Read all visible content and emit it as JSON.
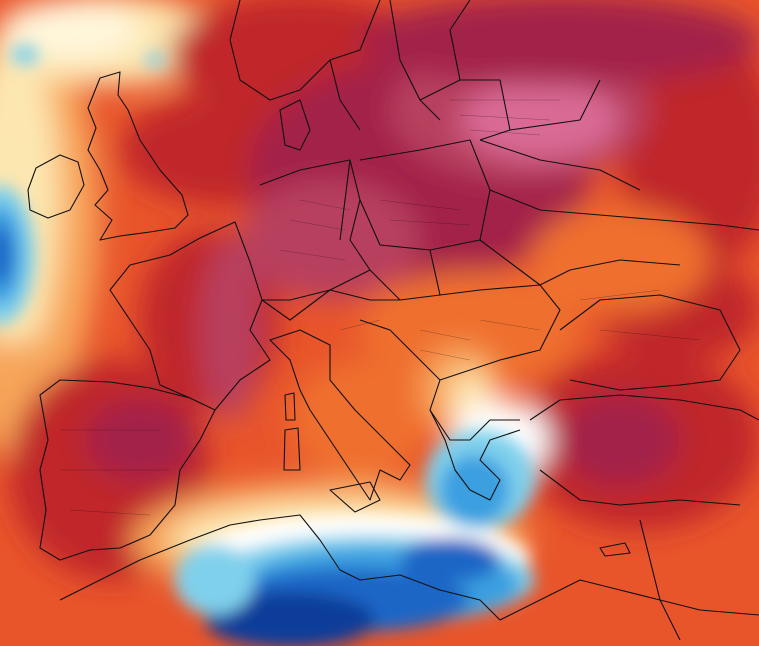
{
  "map": {
    "colors": {
      "background_warm": "#e8552b",
      "deep_red": "#c0262c",
      "crimson": "#a32448",
      "magenta": "#b8415f",
      "pink": "#d96a95",
      "orange": "#ef6f2f",
      "light_orange": "#f7a55a",
      "cream": "#fde7b0",
      "pale": "#fff6dc",
      "white": "#ffffff",
      "light_blue": "#7fd0ec",
      "sky_blue": "#3a9fe0",
      "blue": "#1c66c6",
      "deep_blue": "#0c3d9a",
      "border": "#101010"
    }
  }
}
